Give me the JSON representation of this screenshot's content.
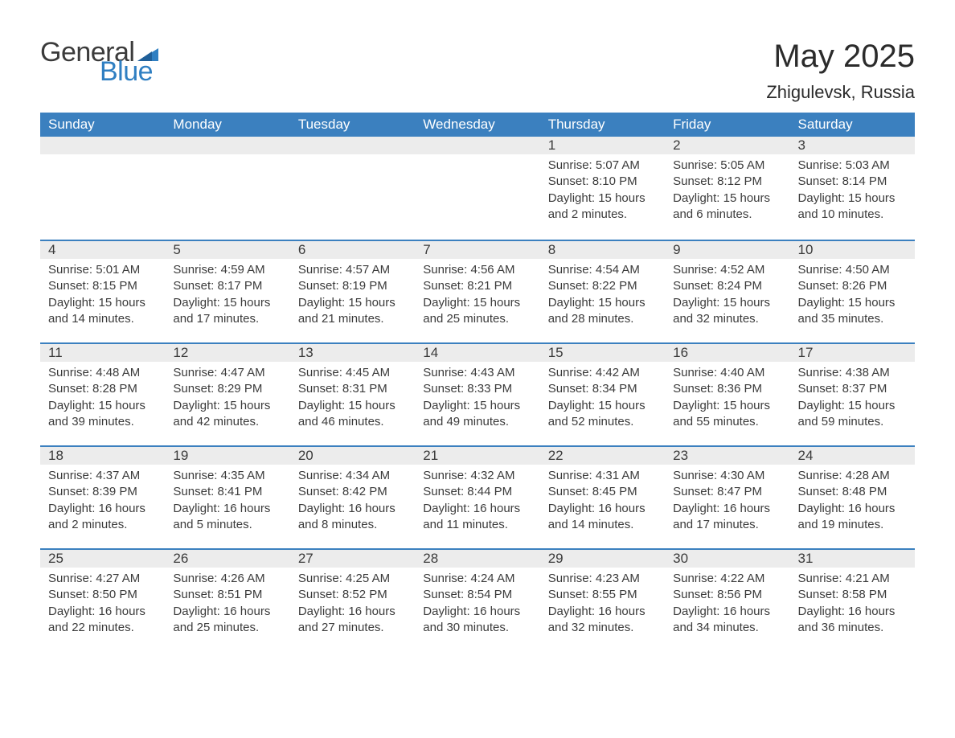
{
  "logo": {
    "word1": "General",
    "word2": "Blue",
    "text_color": "#3b3b3b",
    "accent_color": "#2f7fc2"
  },
  "title": "May 2025",
  "subtitle": "Zhigulevsk, Russia",
  "header_bg": "#3b80bf",
  "header_text_color": "#ffffff",
  "day_header_bg": "#ececec",
  "day_header_rule": "#3b80bf",
  "body_text_color": "#3b3b3b",
  "page_bg": "#ffffff",
  "columns": [
    "Sunday",
    "Monday",
    "Tuesday",
    "Wednesday",
    "Thursday",
    "Friday",
    "Saturday"
  ],
  "weeks": [
    [
      null,
      null,
      null,
      null,
      {
        "n": "1",
        "sunrise": "5:07 AM",
        "sunset": "8:10 PM",
        "daylight": "15 hours and 2 minutes."
      },
      {
        "n": "2",
        "sunrise": "5:05 AM",
        "sunset": "8:12 PM",
        "daylight": "15 hours and 6 minutes."
      },
      {
        "n": "3",
        "sunrise": "5:03 AM",
        "sunset": "8:14 PM",
        "daylight": "15 hours and 10 minutes."
      }
    ],
    [
      {
        "n": "4",
        "sunrise": "5:01 AM",
        "sunset": "8:15 PM",
        "daylight": "15 hours and 14 minutes."
      },
      {
        "n": "5",
        "sunrise": "4:59 AM",
        "sunset": "8:17 PM",
        "daylight": "15 hours and 17 minutes."
      },
      {
        "n": "6",
        "sunrise": "4:57 AM",
        "sunset": "8:19 PM",
        "daylight": "15 hours and 21 minutes."
      },
      {
        "n": "7",
        "sunrise": "4:56 AM",
        "sunset": "8:21 PM",
        "daylight": "15 hours and 25 minutes."
      },
      {
        "n": "8",
        "sunrise": "4:54 AM",
        "sunset": "8:22 PM",
        "daylight": "15 hours and 28 minutes."
      },
      {
        "n": "9",
        "sunrise": "4:52 AM",
        "sunset": "8:24 PM",
        "daylight": "15 hours and 32 minutes."
      },
      {
        "n": "10",
        "sunrise": "4:50 AM",
        "sunset": "8:26 PM",
        "daylight": "15 hours and 35 minutes."
      }
    ],
    [
      {
        "n": "11",
        "sunrise": "4:48 AM",
        "sunset": "8:28 PM",
        "daylight": "15 hours and 39 minutes."
      },
      {
        "n": "12",
        "sunrise": "4:47 AM",
        "sunset": "8:29 PM",
        "daylight": "15 hours and 42 minutes."
      },
      {
        "n": "13",
        "sunrise": "4:45 AM",
        "sunset": "8:31 PM",
        "daylight": "15 hours and 46 minutes."
      },
      {
        "n": "14",
        "sunrise": "4:43 AM",
        "sunset": "8:33 PM",
        "daylight": "15 hours and 49 minutes."
      },
      {
        "n": "15",
        "sunrise": "4:42 AM",
        "sunset": "8:34 PM",
        "daylight": "15 hours and 52 minutes."
      },
      {
        "n": "16",
        "sunrise": "4:40 AM",
        "sunset": "8:36 PM",
        "daylight": "15 hours and 55 minutes."
      },
      {
        "n": "17",
        "sunrise": "4:38 AM",
        "sunset": "8:37 PM",
        "daylight": "15 hours and 59 minutes."
      }
    ],
    [
      {
        "n": "18",
        "sunrise": "4:37 AM",
        "sunset": "8:39 PM",
        "daylight": "16 hours and 2 minutes."
      },
      {
        "n": "19",
        "sunrise": "4:35 AM",
        "sunset": "8:41 PM",
        "daylight": "16 hours and 5 minutes."
      },
      {
        "n": "20",
        "sunrise": "4:34 AM",
        "sunset": "8:42 PM",
        "daylight": "16 hours and 8 minutes."
      },
      {
        "n": "21",
        "sunrise": "4:32 AM",
        "sunset": "8:44 PM",
        "daylight": "16 hours and 11 minutes."
      },
      {
        "n": "22",
        "sunrise": "4:31 AM",
        "sunset": "8:45 PM",
        "daylight": "16 hours and 14 minutes."
      },
      {
        "n": "23",
        "sunrise": "4:30 AM",
        "sunset": "8:47 PM",
        "daylight": "16 hours and 17 minutes."
      },
      {
        "n": "24",
        "sunrise": "4:28 AM",
        "sunset": "8:48 PM",
        "daylight": "16 hours and 19 minutes."
      }
    ],
    [
      {
        "n": "25",
        "sunrise": "4:27 AM",
        "sunset": "8:50 PM",
        "daylight": "16 hours and 22 minutes."
      },
      {
        "n": "26",
        "sunrise": "4:26 AM",
        "sunset": "8:51 PM",
        "daylight": "16 hours and 25 minutes."
      },
      {
        "n": "27",
        "sunrise": "4:25 AM",
        "sunset": "8:52 PM",
        "daylight": "16 hours and 27 minutes."
      },
      {
        "n": "28",
        "sunrise": "4:24 AM",
        "sunset": "8:54 PM",
        "daylight": "16 hours and 30 minutes."
      },
      {
        "n": "29",
        "sunrise": "4:23 AM",
        "sunset": "8:55 PM",
        "daylight": "16 hours and 32 minutes."
      },
      {
        "n": "30",
        "sunrise": "4:22 AM",
        "sunset": "8:56 PM",
        "daylight": "16 hours and 34 minutes."
      },
      {
        "n": "31",
        "sunrise": "4:21 AM",
        "sunset": "8:58 PM",
        "daylight": "16 hours and 36 minutes."
      }
    ]
  ],
  "labels": {
    "sunrise": "Sunrise: ",
    "sunset": "Sunset: ",
    "daylight": "Daylight: "
  }
}
